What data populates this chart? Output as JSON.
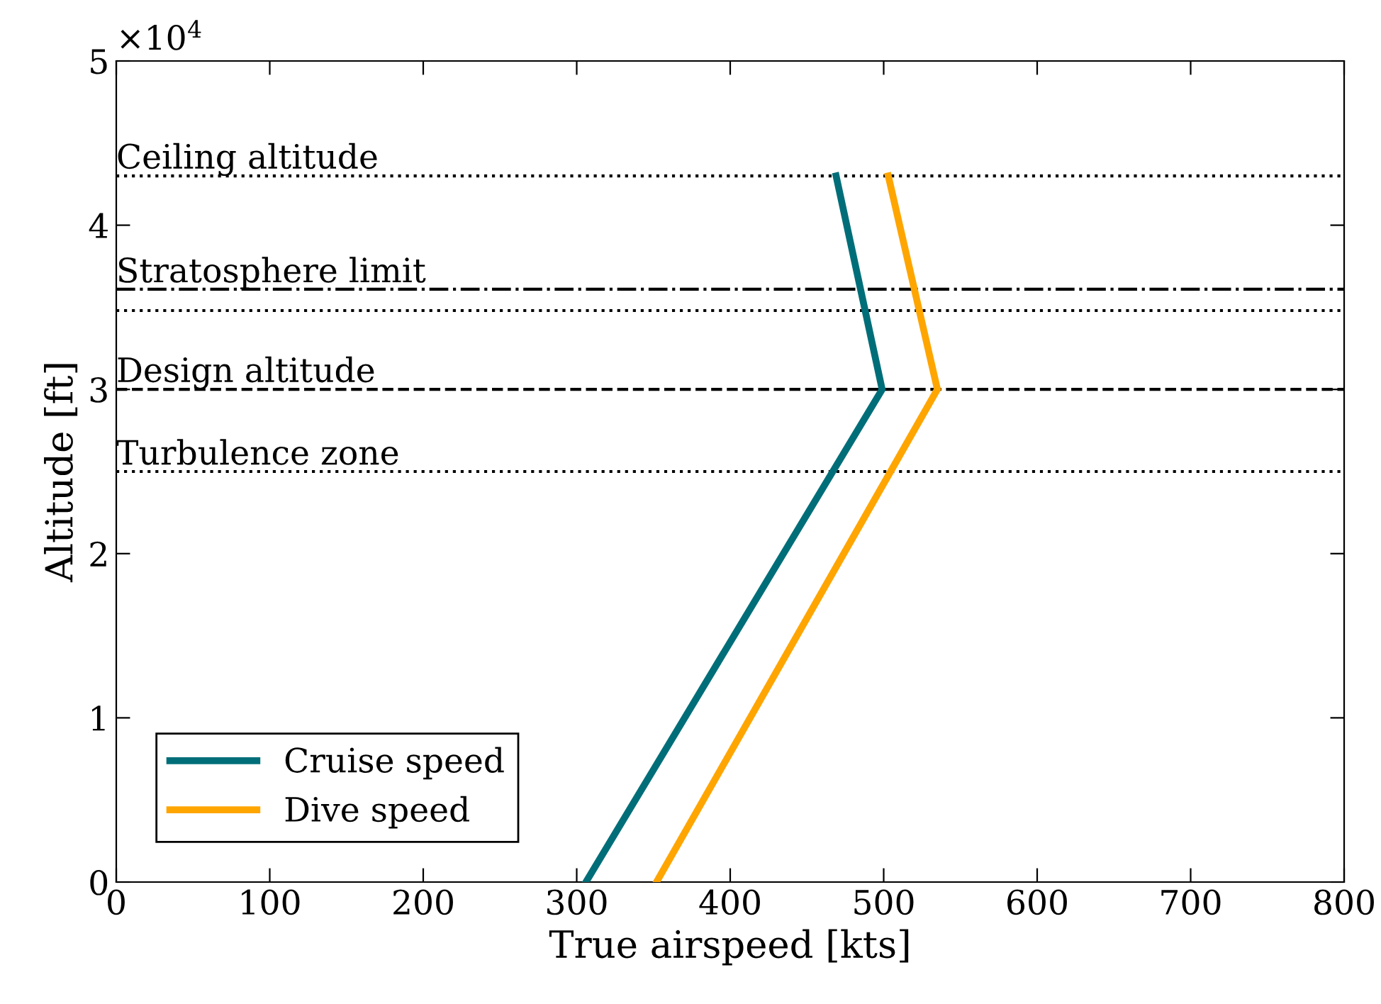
{
  "chart_data": {
    "type": "line",
    "xlabel": "True airspeed [kts]",
    "ylabel": "Altitude [ft]",
    "annotations": [
      "×10$^{4}$"
    ],
    "xlim": [
      0,
      800
    ],
    "xticks": [
      0,
      100,
      200,
      300,
      400,
      500,
      600,
      700,
      800
    ],
    "ylim": [
      0,
      5
    ],
    "yticks": [
      0,
      1,
      2,
      3,
      4,
      5
    ],
    "series": [
      {
        "name": "Cruise speed",
        "color": "#006e78",
        "x": [
          306,
          499,
          469
        ],
        "values": [
          0,
          3,
          4.3
        ]
      },
      {
        "name": "Dive speed",
        "color": "#ffa500",
        "x": [
          352,
          535,
          503
        ],
        "values": [
          0,
          3,
          4.3
        ]
      }
    ],
    "ref_lines": [
      {
        "axis": "y",
        "value": 4.3,
        "label": "Ceiling altitude",
        "line_style": "dotted",
        "color": "#000000"
      },
      {
        "axis": "y",
        "value": 3.61,
        "label": "Stratosphere limit",
        "line_style": "dashdot",
        "color": "#000000"
      },
      {
        "axis": "y",
        "value": 3.48,
        "line_style": "dotted",
        "color": "#000000"
      },
      {
        "axis": "y",
        "value": 3,
        "label": "Design altitude",
        "line_style": "dashed",
        "color": "#000000"
      },
      {
        "axis": "y",
        "value": 2.5,
        "label": "Turbulence zone",
        "line_style": "dotted",
        "color": "#000000"
      }
    ],
    "legend": "bottom left",
    "grid": false,
    "marker": "none",
    "line_style": "solid"
  }
}
